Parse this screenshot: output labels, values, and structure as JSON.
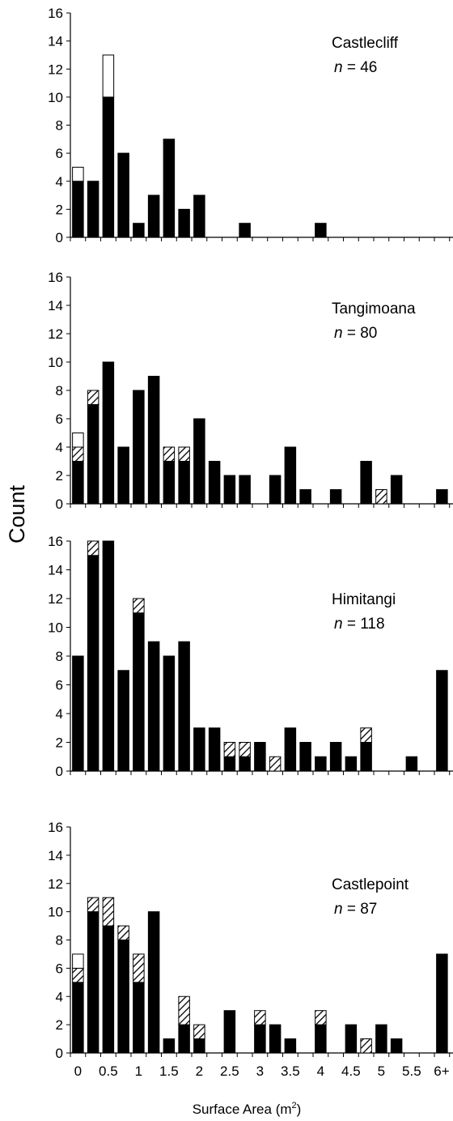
{
  "figure": {
    "ylabel": "Count",
    "xlabel": "Surface Area (m",
    "xlabel_sup": "2",
    "xlabel_close": ")"
  },
  "chart_data": [
    {
      "type": "bar",
      "stacked": true,
      "label": "Castlecliff",
      "n_label": "n",
      "n_value": "= 46",
      "ylim": [
        0,
        16
      ],
      "yticks": [
        "0",
        "2",
        "4",
        "6",
        "8",
        "10",
        "12",
        "14",
        "16"
      ],
      "categories": [
        "0",
        "0.25",
        "0.5",
        "0.75",
        "1",
        "1.25",
        "1.5",
        "1.75",
        "2",
        "2.25",
        "2.5",
        "2.75",
        "3",
        "3.25",
        "3.5",
        "3.75",
        "4",
        "4.25",
        "4.5",
        "4.75",
        "5",
        "5.25",
        "5.5",
        "5.75",
        "6+"
      ],
      "series": [
        {
          "fill": "black",
          "values": [
            4,
            4,
            10,
            6,
            1,
            3,
            7,
            2,
            3,
            0,
            0,
            1,
            0,
            0,
            0,
            0,
            1,
            0,
            0,
            0,
            0,
            0,
            0,
            0,
            0
          ]
        },
        {
          "fill": "hatched",
          "values": [
            0,
            0,
            0,
            0,
            0,
            0,
            0,
            0,
            0,
            0,
            0,
            0,
            0,
            0,
            0,
            0,
            0,
            0,
            0,
            0,
            0,
            0,
            0,
            0,
            0
          ]
        },
        {
          "fill": "white",
          "values": [
            1,
            0,
            3,
            0,
            0,
            0,
            0,
            0,
            0,
            0,
            0,
            0,
            0,
            0,
            0,
            0,
            0,
            0,
            0,
            0,
            0,
            0,
            0,
            0,
            0
          ]
        }
      ]
    },
    {
      "type": "bar",
      "stacked": true,
      "label": "Tangimoana",
      "n_label": "n",
      "n_value": "= 80",
      "ylim": [
        0,
        16
      ],
      "yticks": [
        "0",
        "2",
        "4",
        "6",
        "8",
        "10",
        "12",
        "14",
        "16"
      ],
      "categories": [
        "0",
        "0.25",
        "0.5",
        "0.75",
        "1",
        "1.25",
        "1.5",
        "1.75",
        "2",
        "2.25",
        "2.5",
        "2.75",
        "3",
        "3.25",
        "3.5",
        "3.75",
        "4",
        "4.25",
        "4.5",
        "4.75",
        "5",
        "5.25",
        "5.5",
        "5.75",
        "6+"
      ],
      "series": [
        {
          "fill": "black",
          "values": [
            3,
            7,
            10,
            4,
            8,
            9,
            3,
            3,
            6,
            3,
            2,
            2,
            0,
            2,
            4,
            1,
            0,
            1,
            0,
            3,
            0,
            2,
            0,
            0,
            1
          ]
        },
        {
          "fill": "hatched",
          "values": [
            1,
            1,
            0,
            0,
            0,
            0,
            1,
            1,
            0,
            0,
            0,
            0,
            0,
            0,
            0,
            0,
            0,
            0,
            0,
            0,
            1,
            0,
            0,
            0,
            0
          ]
        },
        {
          "fill": "white",
          "values": [
            1,
            0,
            0,
            0,
            0,
            0,
            0,
            0,
            0,
            0,
            0,
            0,
            0,
            0,
            0,
            0,
            0,
            0,
            0,
            0,
            0,
            0,
            0,
            0,
            0
          ]
        }
      ]
    },
    {
      "type": "bar",
      "stacked": true,
      "label": "Himitangi",
      "n_label": "n",
      "n_value": "= 118",
      "ylim": [
        0,
        16
      ],
      "yticks": [
        "0",
        "2",
        "4",
        "6",
        "8",
        "10",
        "12",
        "14",
        "16"
      ],
      "categories": [
        "0",
        "0.25",
        "0.5",
        "0.75",
        "1",
        "1.25",
        "1.5",
        "1.75",
        "2",
        "2.25",
        "2.5",
        "2.75",
        "3",
        "3.25",
        "3.5",
        "3.75",
        "4",
        "4.25",
        "4.5",
        "4.75",
        "5",
        "5.25",
        "5.5",
        "5.75",
        "6+"
      ],
      "series": [
        {
          "fill": "black",
          "values": [
            8,
            15,
            16,
            7,
            11,
            9,
            8,
            9,
            3,
            3,
            1,
            1,
            2,
            0,
            3,
            2,
            1,
            2,
            1,
            2,
            0,
            0,
            1,
            0,
            7
          ]
        },
        {
          "fill": "hatched",
          "values": [
            0,
            1,
            0,
            0,
            1,
            0,
            0,
            0,
            0,
            0,
            1,
            1,
            0,
            1,
            0,
            0,
            0,
            0,
            0,
            1,
            0,
            0,
            0,
            0,
            0
          ]
        },
        {
          "fill": "white",
          "values": [
            0,
            0,
            0,
            0,
            0,
            0,
            0,
            0,
            0,
            0,
            0,
            0,
            0,
            0,
            0,
            0,
            0,
            0,
            0,
            0,
            0,
            0,
            0,
            0,
            0
          ]
        }
      ]
    },
    {
      "type": "bar",
      "stacked": true,
      "label": "Castlepoint",
      "n_label": "n",
      "n_value": "= 87",
      "ylim": [
        0,
        16
      ],
      "yticks": [
        "0",
        "2",
        "4",
        "6",
        "8",
        "10",
        "12",
        "14",
        "16"
      ],
      "xticks": [
        "0",
        "0.5",
        "1",
        "1.5",
        "2",
        "2.5",
        "3",
        "3.5",
        "4",
        "4.5",
        "5",
        "5.5",
        "6+"
      ],
      "categories": [
        "0",
        "0.25",
        "0.5",
        "0.75",
        "1",
        "1.25",
        "1.5",
        "1.75",
        "2",
        "2.25",
        "2.5",
        "2.75",
        "3",
        "3.25",
        "3.5",
        "3.75",
        "4",
        "4.25",
        "4.5",
        "4.75",
        "5",
        "5.25",
        "5.5",
        "5.75",
        "6+"
      ],
      "series": [
        {
          "fill": "black",
          "values": [
            5,
            10,
            9,
            8,
            5,
            10,
            1,
            2,
            1,
            0,
            3,
            0,
            2,
            2,
            1,
            0,
            2,
            0,
            2,
            0,
            2,
            1,
            0,
            0,
            7
          ]
        },
        {
          "fill": "hatched",
          "values": [
            1,
            1,
            2,
            1,
            2,
            0,
            0,
            2,
            1,
            0,
            0,
            0,
            1,
            0,
            0,
            0,
            1,
            0,
            0,
            1,
            0,
            0,
            0,
            0,
            0
          ]
        },
        {
          "fill": "white",
          "values": [
            1,
            0,
            0,
            0,
            0,
            0,
            0,
            0,
            0,
            0,
            0,
            0,
            0,
            0,
            0,
            0,
            0,
            0,
            0,
            0,
            0,
            0,
            0,
            0,
            0
          ]
        }
      ]
    }
  ]
}
